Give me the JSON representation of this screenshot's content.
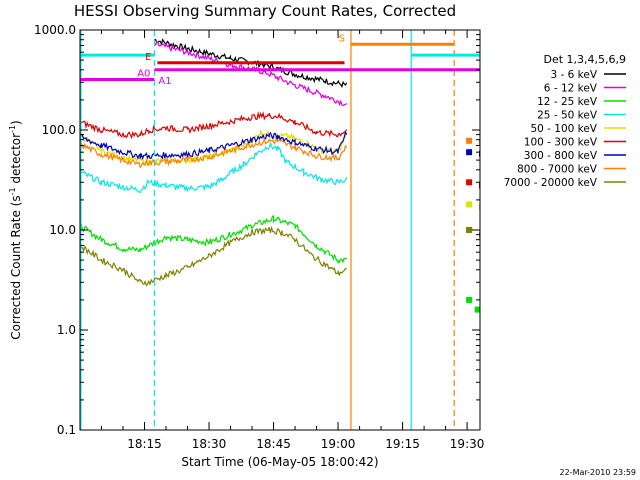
{
  "chart_data": {
    "type": "line",
    "title": "HESSI Observing Summary Count Rates, Corrected",
    "ylabel_main": "Corrected Count Rate (s",
    "ylabel_sup1": "-1",
    "ylabel_mid": " detector",
    "ylabel_sup2": "-1",
    "ylabel_end": ")",
    "xlabel": "Start Time (06-May-05 18:00:42)",
    "footer_date": "22-Mar-2010 23:59",
    "y_scale": "log",
    "ylim": [
      0.1,
      1000
    ],
    "xlim_minutes": [
      0,
      93
    ],
    "y_ticks": [
      {
        "value": 0.1,
        "label": "0.1"
      },
      {
        "value": 1,
        "label": "1.0"
      },
      {
        "value": 10,
        "label": "10.0"
      },
      {
        "value": 100,
        "label": "100.0"
      },
      {
        "value": 1000,
        "label": "1000.0"
      }
    ],
    "x_ticks": [
      {
        "value": 15,
        "label": "18:15"
      },
      {
        "value": 30,
        "label": "18:30"
      },
      {
        "value": 45,
        "label": "18:45"
      },
      {
        "value": 60,
        "label": "19:00"
      },
      {
        "value": 75,
        "label": "19:15"
      },
      {
        "value": 90,
        "label": "19:30"
      }
    ],
    "legend_title": "Det 1,3,4,5,6,9",
    "legend_position": "right",
    "series": [
      {
        "name": "3 - 6 keV",
        "color": "#000000",
        "points": [
          [
            17.3,
            800
          ],
          [
            25,
            650
          ],
          [
            35,
            520
          ],
          [
            43,
            450
          ],
          [
            50,
            360
          ],
          [
            57,
            310
          ],
          [
            62,
            280
          ]
        ],
        "post_eclipse": [
          [
            89,
            null
          ],
          [
            93,
            null
          ]
        ]
      },
      {
        "name": "6 - 12 keV",
        "color": "#e000e0",
        "points": [
          [
            17.3,
            720
          ],
          [
            25,
            600
          ],
          [
            35,
            450
          ],
          [
            43,
            380
          ],
          [
            50,
            280
          ],
          [
            57,
            220
          ],
          [
            62,
            180
          ]
        ],
        "post_eclipse": []
      },
      {
        "name": "12 - 25 keV",
        "color": "#00e000",
        "points": [
          [
            0,
            11
          ],
          [
            5,
            8
          ],
          [
            10,
            6.5
          ],
          [
            14,
            6.3
          ],
          [
            16,
            7
          ],
          [
            20,
            8.5
          ],
          [
            25,
            8
          ],
          [
            30,
            7.5
          ],
          [
            35,
            9
          ],
          [
            40,
            11
          ],
          [
            45,
            13
          ],
          [
            50,
            11
          ],
          [
            55,
            7
          ],
          [
            60,
            5
          ],
          [
            62,
            5
          ]
        ],
        "post_eclipse": [
          [
            90,
            2
          ],
          [
            92,
            1.6
          ]
        ]
      },
      {
        "name": "25 - 50 keV",
        "color": "#00e8e8",
        "points": [
          [
            0,
            38
          ],
          [
            5,
            30
          ],
          [
            10,
            27
          ],
          [
            14,
            25
          ],
          [
            16,
            30
          ],
          [
            20,
            28
          ],
          [
            25,
            26
          ],
          [
            30,
            27
          ],
          [
            33,
            32
          ],
          [
            36,
            40
          ],
          [
            38,
            45
          ],
          [
            41,
            58
          ],
          [
            44,
            70
          ],
          [
            46,
            65
          ],
          [
            48,
            48
          ],
          [
            52,
            38
          ],
          [
            56,
            32
          ],
          [
            60,
            30
          ],
          [
            62,
            32
          ]
        ],
        "post_eclipse": [
          [
            90,
            10
          ],
          [
            93,
            9
          ]
        ]
      },
      {
        "name": "50 - 100 keV",
        "color": "#e0e000",
        "points": [
          [
            0,
            90
          ],
          [
            5,
            62
          ],
          [
            10,
            52
          ],
          [
            14,
            50
          ],
          [
            16,
            48
          ],
          [
            20,
            50
          ],
          [
            25,
            50
          ],
          [
            30,
            54
          ],
          [
            35,
            62
          ],
          [
            38,
            70
          ],
          [
            40,
            78
          ],
          [
            42,
            95
          ],
          [
            44,
            90
          ],
          [
            46,
            85
          ],
          [
            48,
            88
          ],
          [
            52,
            75
          ],
          [
            56,
            63
          ],
          [
            60,
            60
          ],
          [
            62,
            90
          ]
        ],
        "post_eclipse": [
          [
            90,
            18
          ],
          [
            93,
            17
          ]
        ]
      },
      {
        "name": "100 - 300 keV",
        "color": "#e00000",
        "points": [
          [
            0,
            120
          ],
          [
            5,
            100
          ],
          [
            10,
            90
          ],
          [
            14,
            90
          ],
          [
            16,
            100
          ],
          [
            20,
            105
          ],
          [
            25,
            100
          ],
          [
            30,
            110
          ],
          [
            35,
            122
          ],
          [
            40,
            135
          ],
          [
            44,
            140
          ],
          [
            46,
            137
          ],
          [
            50,
            120
          ],
          [
            55,
            95
          ],
          [
            60,
            90
          ],
          [
            62,
            100
          ]
        ],
        "post_eclipse": [
          [
            90,
            30
          ],
          [
            93,
            28
          ]
        ]
      },
      {
        "name": "300 - 800 keV",
        "color": "#0000c0",
        "points": [
          [
            0,
            85
          ],
          [
            5,
            70
          ],
          [
            10,
            60
          ],
          [
            14,
            55
          ],
          [
            16,
            55
          ],
          [
            20,
            56
          ],
          [
            25,
            57
          ],
          [
            30,
            62
          ],
          [
            35,
            70
          ],
          [
            40,
            80
          ],
          [
            44,
            88
          ],
          [
            46,
            86
          ],
          [
            50,
            75
          ],
          [
            55,
            65
          ],
          [
            60,
            60
          ],
          [
            62,
            95
          ]
        ],
        "post_eclipse": [
          [
            90,
            60
          ],
          [
            93,
            58
          ]
        ]
      },
      {
        "name": "800 - 7000 keV",
        "color": "#ff8000",
        "points": [
          [
            0,
            72
          ],
          [
            5,
            57
          ],
          [
            10,
            50
          ],
          [
            14,
            45
          ],
          [
            16,
            47
          ],
          [
            20,
            48
          ],
          [
            25,
            50
          ],
          [
            30,
            54
          ],
          [
            35,
            62
          ],
          [
            40,
            72
          ],
          [
            44,
            78
          ],
          [
            46,
            77
          ],
          [
            50,
            67
          ],
          [
            55,
            55
          ],
          [
            60,
            52
          ],
          [
            62,
            70
          ]
        ],
        "post_eclipse": [
          [
            90,
            78
          ],
          [
            93,
            75
          ]
        ]
      },
      {
        "name": "7000 - 20000 keV",
        "color": "#808000",
        "points": [
          [
            0,
            7
          ],
          [
            5,
            5
          ],
          [
            10,
            4
          ],
          [
            14,
            3
          ],
          [
            16,
            3
          ],
          [
            20,
            3.5
          ],
          [
            25,
            4.2
          ],
          [
            30,
            5.5
          ],
          [
            35,
            7.5
          ],
          [
            40,
            9.5
          ],
          [
            44,
            10
          ],
          [
            47,
            9.5
          ],
          [
            50,
            8
          ],
          [
            54,
            5.5
          ],
          [
            57,
            4.5
          ],
          [
            60,
            3.7
          ],
          [
            62,
            4
          ]
        ],
        "post_eclipse": [
          [
            90,
            10
          ],
          [
            93,
            9
          ]
        ]
      }
    ],
    "annotations": [
      {
        "label": "E",
        "color": "#e00000",
        "x_range": [
          18,
          61.5
        ],
        "y": 470
      },
      {
        "label": "S",
        "color": "#ff8000",
        "x_range": [
          63,
          87
        ],
        "y": 720
      },
      {
        "label": "A0",
        "color": "#e000e0",
        "x_range": [
          0,
          17.3
        ],
        "y": 320
      },
      {
        "label": "A1",
        "color": "#e000e0",
        "x_range": [
          17.3,
          93
        ],
        "y": 400
      }
    ],
    "flag_bars": [
      {
        "color": "#00e8e8",
        "x_range": [
          0,
          17.3
        ],
        "y": 560
      },
      {
        "color": "#00e8e8",
        "x_range": [
          77,
          93
        ],
        "y": 560
      }
    ],
    "vertical_lines": [
      {
        "x": 0.2,
        "color": "#00e8e8",
        "style": "solid"
      },
      {
        "x": 17.3,
        "color": "#00e8e8",
        "style": "dashed"
      },
      {
        "x": 63,
        "color": "#ff8000",
        "style": "solid"
      },
      {
        "x": 77,
        "color": "#00e8e8",
        "style": "solid"
      },
      {
        "x": 87,
        "color": "#ff8000",
        "style": "dashed"
      },
      {
        "x": 93.3,
        "color": "#00e8e8",
        "style": "dashed"
      }
    ]
  }
}
